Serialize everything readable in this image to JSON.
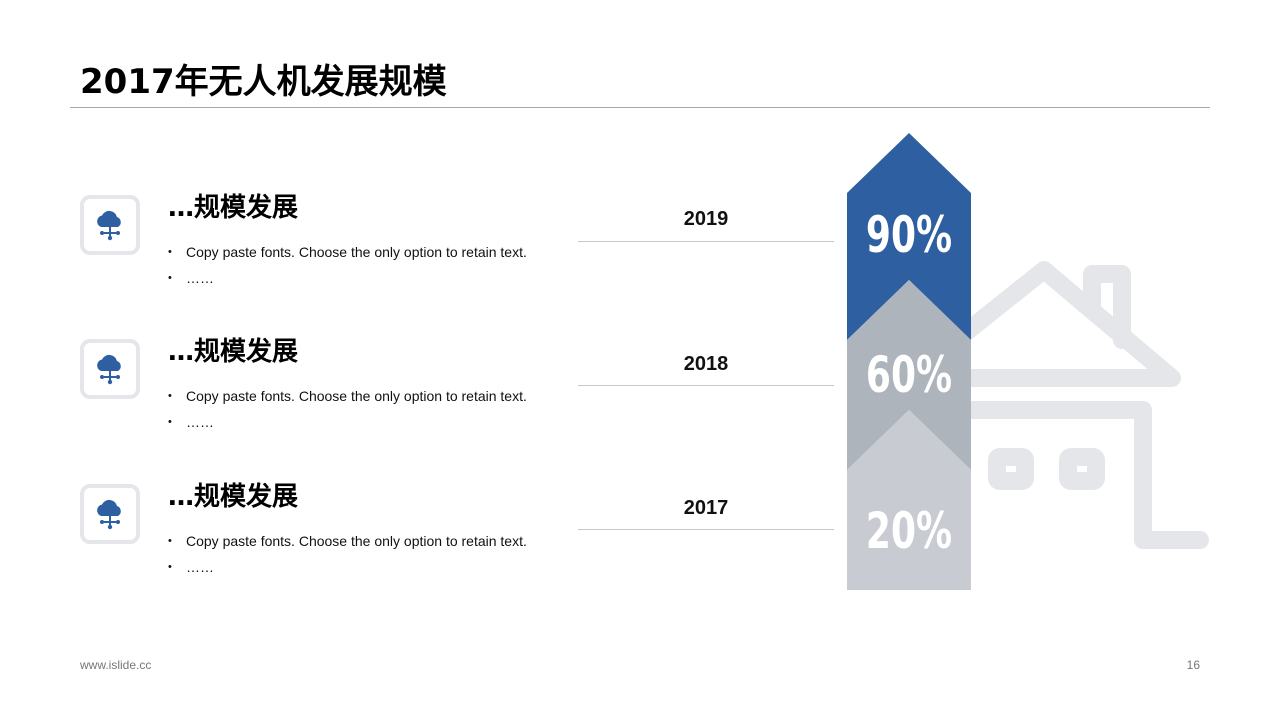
{
  "header": {
    "title": "2017年无人机发展规模"
  },
  "items": [
    {
      "heading": "…规模发展",
      "bullets": [
        "Copy paste fonts. Choose the only option to retain text.",
        "……"
      ],
      "year": "2019",
      "icon": "cloud-network-icon"
    },
    {
      "heading": "…规模发展",
      "bullets": [
        "Copy paste fonts. Choose the only option to retain text.",
        "……"
      ],
      "year": "2018",
      "icon": "cloud-network-icon"
    },
    {
      "heading": "…规模发展",
      "bullets": [
        "Copy paste fonts. Choose the only option to retain text.",
        "……"
      ],
      "year": "2017",
      "icon": "cloud-network-icon"
    }
  ],
  "arrow": {
    "segments": [
      {
        "label": "90%",
        "year": "2019",
        "color": "#2e5fa1"
      },
      {
        "label": "60%",
        "year": "2018",
        "color": "#adb4bc"
      },
      {
        "label": "20%",
        "year": "2017",
        "color": "#c8ccd2"
      }
    ],
    "background_icon": "house-icon",
    "house_color": "#e4e6ea"
  },
  "colors": {
    "accent": "#2e5fa1",
    "icon_border": "#e4e6ea"
  },
  "footer": {
    "url": "www.islide.cc",
    "page": "16"
  }
}
